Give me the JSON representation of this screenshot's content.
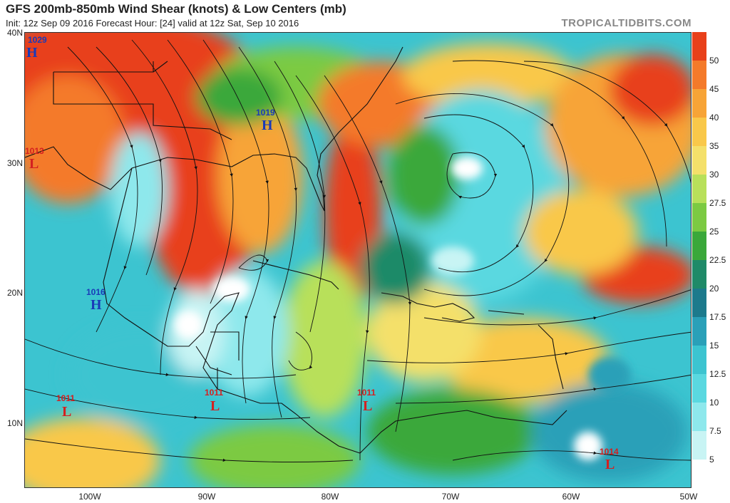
{
  "header": {
    "title": "GFS 200mb-850mb Wind Shear (knots) & Low Centers (mb)",
    "subtitle": "Init: 12z Sep 09 2016   Forecast Hour: [24]   valid at 12z Sat, Sep 10 2016",
    "source": "TROPICALTIDBITS.COM"
  },
  "axes": {
    "lat_labels": [
      "40N",
      "30N",
      "20N",
      "10N"
    ],
    "lon_labels": [
      "100W",
      "90W",
      "80W",
      "70W",
      "60W",
      "50W"
    ]
  },
  "colorbar": {
    "labels": [
      "50",
      "45",
      "40",
      "35",
      "30",
      "27.5",
      "25",
      "22.5",
      "20",
      "17.5",
      "15",
      "12.5",
      "10",
      "7.5",
      "5"
    ],
    "colors": [
      "#e8401a",
      "#f47a2a",
      "#f7a437",
      "#f9c84a",
      "#f4e06a",
      "#b8e05a",
      "#7cca42",
      "#3aa83a",
      "#1f8a68",
      "#1c7a8c",
      "#2aa0b8",
      "#3cc4d0",
      "#5ad8e0",
      "#8ee8ec",
      "#c8f4f4",
      "#ffffff"
    ]
  },
  "pressure_centers": [
    {
      "value": "1029",
      "type": "H",
      "color": "#1a3ab8"
    },
    {
      "value": "1013",
      "type": "L",
      "color": "#d42020"
    },
    {
      "value": "1019",
      "type": "H",
      "color": "#1a3ab8"
    },
    {
      "value": "1016",
      "type": "H",
      "color": "#1a3ab8"
    },
    {
      "value": "1011",
      "type": "L",
      "color": "#d42020"
    },
    {
      "value": "1011",
      "type": "L",
      "color": "#d42020"
    },
    {
      "value": "1011",
      "type": "L",
      "color": "#d42020"
    },
    {
      "value": "1014",
      "type": "L",
      "color": "#d42020"
    }
  ]
}
